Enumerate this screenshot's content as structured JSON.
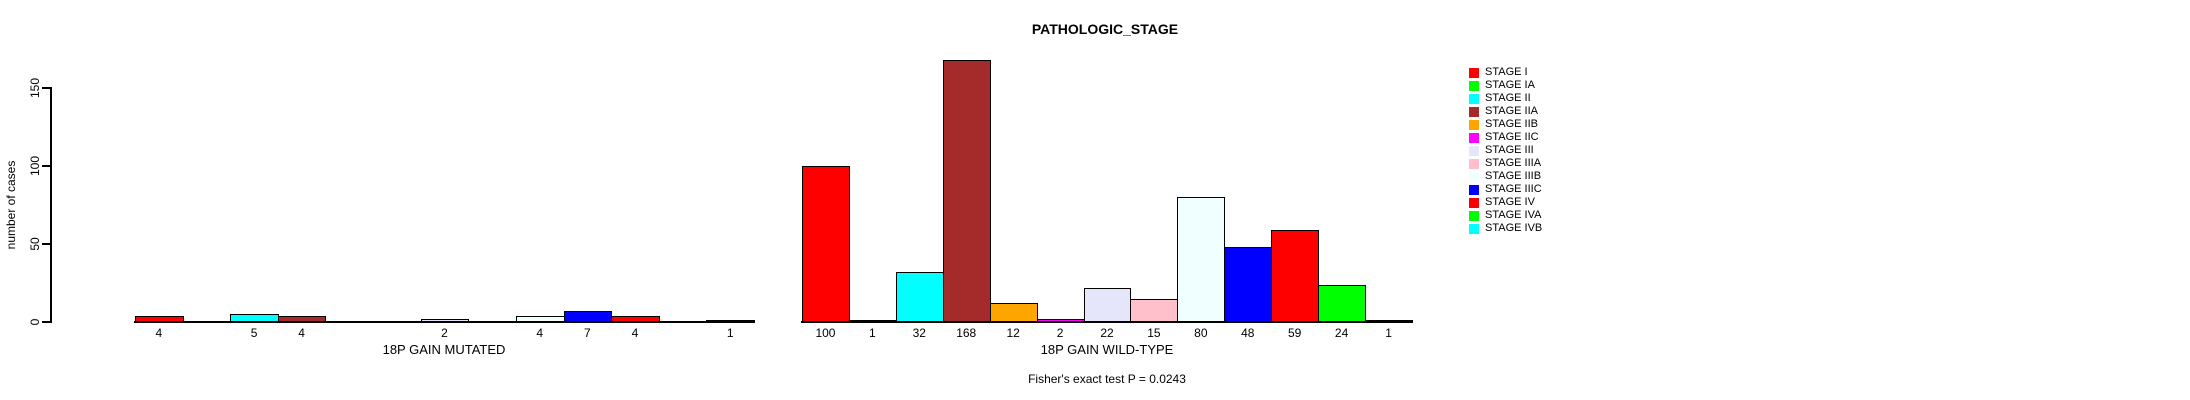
{
  "title": "PATHOLOGIC_STAGE",
  "subtitle": "Fisher's exact test P = 0.0243",
  "y_axis": {
    "label": "number of cases",
    "ticks": [
      0,
      50,
      100,
      150
    ]
  },
  "chart_data": [
    {
      "type": "bar",
      "panel": "18p-gain-mutated",
      "xlabel": "18P GAIN MUTATED",
      "ylabel": "number of cases",
      "ylim": [
        0,
        150
      ],
      "yticks": [
        0,
        50,
        100,
        150
      ],
      "grid": false,
      "legend_position": "right",
      "categories": [
        "STAGE I",
        "STAGE IA",
        "STAGE II",
        "STAGE IIA",
        "STAGE IIB",
        "STAGE IIC",
        "STAGE III",
        "STAGE IIIA",
        "STAGE IIIB",
        "STAGE IIIC",
        "STAGE IV",
        "STAGE IVA",
        "STAGE IVB"
      ],
      "values": [
        4,
        null,
        5,
        4,
        null,
        null,
        2,
        null,
        4,
        7,
        4,
        null,
        1
      ],
      "bar_value_labels": [
        "4",
        "",
        "5",
        "4",
        "",
        "",
        "2",
        "",
        "4",
        "7",
        "4",
        "",
        "1"
      ]
    },
    {
      "type": "bar",
      "panel": "18p-gain-wild-type",
      "xlabel": "18P GAIN WILD-TYPE",
      "ylabel": "number of cases",
      "ylim": [
        0,
        150
      ],
      "yticks": [
        0,
        50,
        100,
        150
      ],
      "grid": false,
      "legend_position": "right",
      "categories": [
        "STAGE I",
        "STAGE IA",
        "STAGE II",
        "STAGE IIA",
        "STAGE IIB",
        "STAGE IIC",
        "STAGE III",
        "STAGE IIIA",
        "STAGE IIIB",
        "STAGE IIIC",
        "STAGE IV",
        "STAGE IVA",
        "STAGE IVB"
      ],
      "values": [
        100,
        1,
        32,
        168,
        12,
        2,
        22,
        15,
        80,
        48,
        59,
        24,
        1
      ],
      "bar_value_labels": [
        "100",
        "1",
        "32",
        "168",
        "12",
        "2",
        "22",
        "15",
        "80",
        "48",
        "59",
        "24",
        "1"
      ]
    }
  ],
  "legend": {
    "items": [
      {
        "label": "STAGE I",
        "color": "#FF0000"
      },
      {
        "label": "STAGE IA",
        "color": "#00FF00"
      },
      {
        "label": "STAGE II",
        "color": "#00FFFF"
      },
      {
        "label": "STAGE IIA",
        "color": "#A52A2A"
      },
      {
        "label": "STAGE IIB",
        "color": "#FFA500"
      },
      {
        "label": "STAGE IIC",
        "color": "#FF00FF"
      },
      {
        "label": "STAGE III",
        "color": "#E6E6FA"
      },
      {
        "label": "STAGE IIIA",
        "color": "#FFC0CB"
      },
      {
        "label": "STAGE IIIB",
        "color": "#F0FFFF"
      },
      {
        "label": "STAGE IIIC",
        "color": "#0000FF"
      },
      {
        "label": "STAGE IV",
        "color": "#FF0000"
      },
      {
        "label": "STAGE IVA",
        "color": "#00FF00"
      },
      {
        "label": "STAGE IVB",
        "color": "#00FFFF"
      }
    ]
  }
}
